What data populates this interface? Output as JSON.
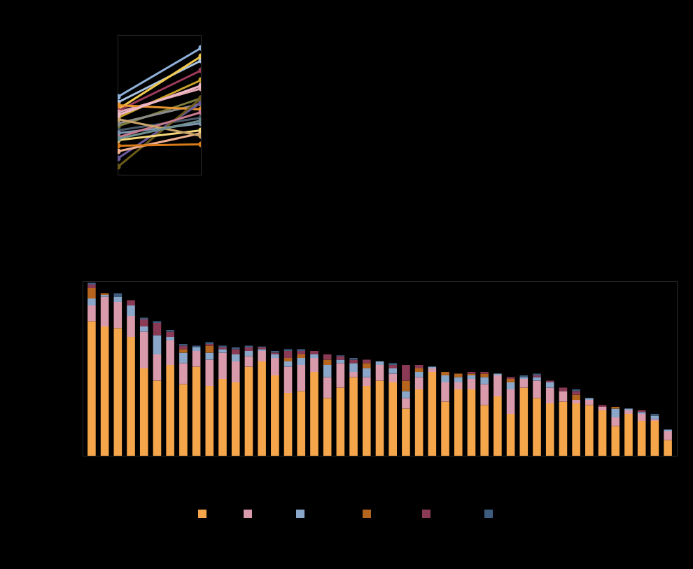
{
  "chart_data": [
    {
      "type": "line",
      "categories": [
        null,
        null
      ],
      "ylim": [
        0,
        100
      ],
      "yticks": [],
      "tick_labels": false,
      "marker": "circle",
      "series": [
        {
          "color": "#8fb0d8",
          "values": [
            56,
            91
          ]
        },
        {
          "color": "#a9c2e0",
          "values": [
            52,
            82
          ]
        },
        {
          "color": "#f2c94c",
          "values": [
            47,
            85
          ]
        },
        {
          "color": "#9c3a5a",
          "values": [
            46,
            75
          ]
        },
        {
          "color": "#c9a227",
          "values": [
            41,
            68
          ]
        },
        {
          "color": "#e3a8b5",
          "values": [
            45,
            62
          ]
        },
        {
          "color": "#7a7a3a",
          "values": [
            35,
            55
          ]
        },
        {
          "color": "#8a8a8a",
          "values": [
            37,
            51
          ]
        },
        {
          "color": "#4a5a6a",
          "values": [
            32,
            41
          ]
        },
        {
          "color": "#e8952e",
          "values": [
            50,
            47
          ]
        },
        {
          "color": "#6b5a9a",
          "values": [
            12,
            52
          ]
        },
        {
          "color": "#6b5a1a",
          "values": [
            6,
            55
          ]
        },
        {
          "color": "#f0b090",
          "values": [
            17,
            30
          ]
        },
        {
          "color": "#d97b1a",
          "values": [
            21,
            22
          ]
        },
        {
          "color": "#f5d77a",
          "values": [
            25,
            32
          ]
        },
        {
          "color": "#7f96b3",
          "values": [
            30,
            37
          ]
        },
        {
          "color": "#c77a8e",
          "values": [
            27,
            45
          ]
        },
        {
          "color": "#c9a46a",
          "values": [
            40,
            28
          ]
        },
        {
          "color": "#efb8c6",
          "values": [
            43,
            64
          ]
        },
        {
          "color": "#6f8f8f",
          "values": [
            26,
            39
          ]
        }
      ]
    },
    {
      "type": "bar",
      "stacked": true,
      "legend": "bottom",
      "tick_labels": false,
      "ylim": [
        0,
        100
      ],
      "yticks": [],
      "categories": [
        null,
        null,
        null,
        null,
        null,
        null,
        null,
        null,
        null,
        null,
        null,
        null,
        null,
        null,
        null,
        null,
        null,
        null,
        null,
        null,
        null,
        null,
        null,
        null,
        null,
        null,
        null,
        null,
        null,
        null,
        null,
        null,
        null,
        null,
        null,
        null,
        null,
        null,
        null,
        null,
        null,
        null,
        null,
        null,
        null
      ],
      "series": [
        {
          "color": "#f5a54a",
          "values": [
            77,
            74,
            73,
            68,
            50,
            43,
            52,
            41,
            51,
            40,
            44,
            42,
            51,
            54,
            46,
            36,
            37,
            48,
            33,
            39,
            45,
            40,
            43,
            42,
            27,
            38,
            48,
            31,
            38,
            38,
            29,
            34,
            24,
            39,
            33,
            30,
            31,
            30,
            29,
            26,
            17,
            24,
            20,
            20,
            9
          ]
        },
        {
          "color": "#d99aab",
          "values": [
            9,
            17,
            15,
            12,
            21,
            15,
            14,
            12,
            9,
            15,
            15,
            12,
            6,
            6,
            10,
            15,
            15,
            8,
            12,
            14,
            3,
            5,
            9,
            5,
            6,
            7,
            2,
            11,
            4,
            6,
            12,
            12,
            14,
            5,
            10,
            9,
            6,
            2,
            3,
            2,
            5,
            2,
            4,
            1,
            5
          ]
        },
        {
          "color": "#8aa6c8",
          "values": [
            4,
            1,
            3,
            6,
            3,
            11,
            2,
            6,
            2,
            4,
            2,
            4,
            3,
            1,
            2,
            3,
            4,
            2,
            7,
            2,
            5,
            5,
            2,
            3,
            4,
            3,
            1,
            4,
            3,
            2,
            4,
            1,
            4,
            1,
            2,
            3,
            0,
            0,
            1,
            0,
            5,
            1,
            1,
            2,
            1
          ]
        },
        {
          "color": "#b5651d",
          "values": [
            6,
            1,
            0,
            0,
            0,
            0,
            0,
            2,
            0,
            4,
            0,
            0,
            0,
            0,
            0,
            2,
            2,
            0,
            3,
            0,
            0,
            3,
            0,
            0,
            6,
            2,
            0,
            2,
            2,
            1,
            2,
            0,
            2,
            0,
            0,
            0,
            0,
            3,
            0,
            0,
            1,
            0,
            0,
            0,
            0
          ]
        },
        {
          "color": "#8b3a56",
          "values": [
            2,
            0,
            0,
            3,
            4,
            7,
            3,
            2,
            0,
            1,
            1,
            3,
            2,
            1,
            1,
            4,
            2,
            2,
            3,
            2,
            2,
            2,
            0,
            2,
            9,
            2,
            0,
            0,
            0,
            1,
            1,
            0,
            1,
            0,
            1,
            1,
            2,
            2,
            0,
            1,
            0,
            0,
            1,
            0,
            0
          ]
        },
        {
          "color": "#3e5c7d",
          "values": [
            1,
            0,
            2,
            0,
            1,
            1,
            1,
            1,
            1,
            1,
            1,
            1,
            1,
            0.5,
            1,
            1,
            1,
            0,
            0,
            0.5,
            1,
            0,
            0,
            1,
            0,
            0,
            0,
            0,
            0,
            0,
            0,
            0,
            0,
            1,
            1,
            0,
            0,
            1,
            0,
            0,
            0,
            0,
            0,
            1,
            0
          ]
        }
      ]
    }
  ]
}
